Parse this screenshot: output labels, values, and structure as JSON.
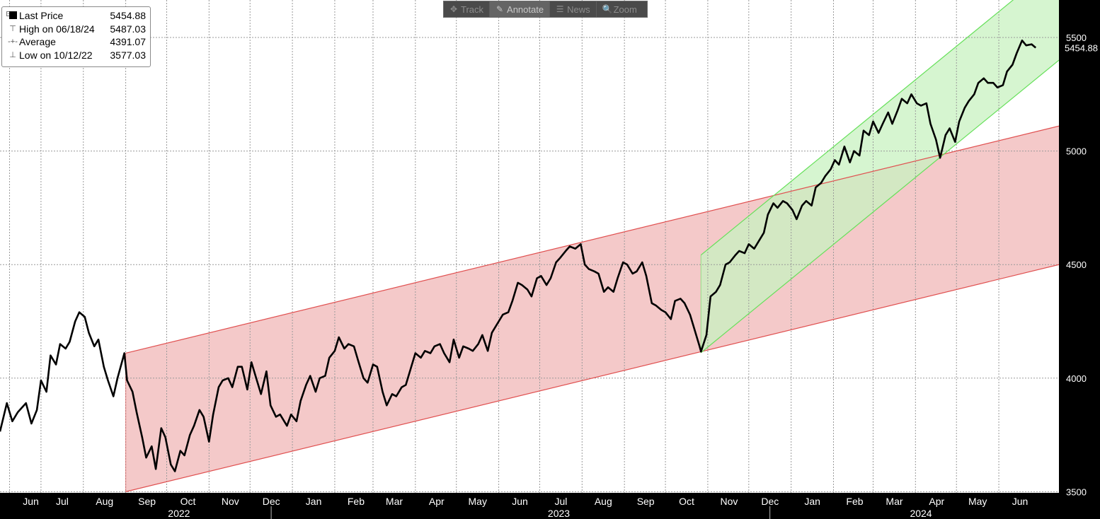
{
  "toolbar": {
    "buttons": [
      {
        "label": "Track",
        "icon": "crosshair-icon",
        "glyph": "✥"
      },
      {
        "label": "Annotate",
        "icon": "pencil-icon",
        "glyph": "✎"
      },
      {
        "label": "News",
        "icon": "news-icon",
        "glyph": "☰"
      },
      {
        "label": "Zoom",
        "icon": "zoom-icon",
        "glyph": "🔍"
      }
    ],
    "active": "Annotate"
  },
  "legend": {
    "rows": [
      {
        "label": "Last Price",
        "value": "5454.88"
      },
      {
        "label": "High on 06/18/24",
        "value": "5487.03"
      },
      {
        "label": "Average",
        "value": "4391.07"
      },
      {
        "label": "Low on 10/12/22",
        "value": "3577.03"
      }
    ]
  },
  "colors": {
    "price_line": "#000000",
    "red_channel_fill": "#f4c9c9",
    "red_channel_line": "#e05050",
    "green_channel_fill": "#c8f2c0",
    "green_channel_line": "#66e05a",
    "overlap_fill": "#d9d4a6",
    "grid": "#9a9a9a",
    "plot_bg": "#ffffff",
    "axis_bg": "#000000",
    "axis_text": "#ffffff"
  },
  "chart_data": {
    "type": "line",
    "title": "",
    "xlabel": "",
    "ylabel": "",
    "y_ticks": [
      3500,
      4000,
      4500,
      5000,
      5500
    ],
    "ylim": [
      3495,
      5665
    ],
    "xlim": [
      "2022-06-01",
      "2024-07-15"
    ],
    "last_value_label": "5454.88",
    "grid": true,
    "legend_position": "top-left",
    "month_ticks": [
      {
        "label": "Jun",
        "date": "2022-06-08"
      },
      {
        "label": "Jul",
        "date": "2022-07-01"
      },
      {
        "label": "Aug",
        "date": "2022-08-01"
      },
      {
        "label": "Sep",
        "date": "2022-09-01"
      },
      {
        "label": "Oct",
        "date": "2022-10-01"
      },
      {
        "label": "Nov",
        "date": "2022-11-01"
      },
      {
        "label": "Dec",
        "date": "2022-12-01"
      },
      {
        "label": "Jan",
        "date": "2023-01-01"
      },
      {
        "label": "Feb",
        "date": "2023-02-01"
      },
      {
        "label": "Mar",
        "date": "2023-03-01"
      },
      {
        "label": "Apr",
        "date": "2023-04-01"
      },
      {
        "label": "May",
        "date": "2023-05-01"
      },
      {
        "label": "Jun",
        "date": "2023-06-01"
      },
      {
        "label": "Jul",
        "date": "2023-07-01"
      },
      {
        "label": "Aug",
        "date": "2023-08-01"
      },
      {
        "label": "Sep",
        "date": "2023-09-01"
      },
      {
        "label": "Oct",
        "date": "2023-10-01"
      },
      {
        "label": "Nov",
        "date": "2023-11-01"
      },
      {
        "label": "Dec",
        "date": "2023-12-01"
      },
      {
        "label": "Jan",
        "date": "2024-01-01"
      },
      {
        "label": "Feb",
        "date": "2024-02-01"
      },
      {
        "label": "Mar",
        "date": "2024-03-01"
      },
      {
        "label": "Apr",
        "date": "2024-04-01"
      },
      {
        "label": "May",
        "date": "2024-05-01"
      },
      {
        "label": "Jun",
        "date": "2024-06-01"
      }
    ],
    "year_labels": [
      {
        "label": "2022",
        "date": "2022-10-10"
      },
      {
        "label": "2023",
        "date": "2023-07-15"
      },
      {
        "label": "2024",
        "date": "2024-04-05"
      }
    ],
    "year_separators": [
      "2023-01-01",
      "2024-01-01"
    ],
    "series": [
      {
        "points": [
          [
            "2022-06-01",
            3765
          ],
          [
            "2022-06-06",
            3890
          ],
          [
            "2022-06-10",
            3810
          ],
          [
            "2022-06-14",
            3850
          ],
          [
            "2022-06-20",
            3890
          ],
          [
            "2022-06-24",
            3800
          ],
          [
            "2022-06-28",
            3860
          ],
          [
            "2022-07-01",
            3990
          ],
          [
            "2022-07-05",
            3940
          ],
          [
            "2022-07-08",
            4100
          ],
          [
            "2022-07-12",
            4060
          ],
          [
            "2022-07-15",
            4150
          ],
          [
            "2022-07-19",
            4130
          ],
          [
            "2022-07-22",
            4160
          ],
          [
            "2022-07-26",
            4250
          ],
          [
            "2022-07-29",
            4290
          ],
          [
            "2022-08-02",
            4270
          ],
          [
            "2022-08-05",
            4200
          ],
          [
            "2022-08-09",
            4140
          ],
          [
            "2022-08-12",
            4170
          ],
          [
            "2022-08-16",
            4050
          ],
          [
            "2022-08-19",
            3990
          ],
          [
            "2022-08-23",
            3920
          ],
          [
            "2022-08-26",
            4000
          ],
          [
            "2022-08-31",
            4110
          ],
          [
            "2022-09-02",
            3990
          ],
          [
            "2022-09-06",
            3940
          ],
          [
            "2022-09-09",
            3850
          ],
          [
            "2022-09-13",
            3740
          ],
          [
            "2022-09-16",
            3650
          ],
          [
            "2022-09-20",
            3700
          ],
          [
            "2022-09-23",
            3600
          ],
          [
            "2022-09-27",
            3780
          ],
          [
            "2022-09-30",
            3740
          ],
          [
            "2022-10-04",
            3620
          ],
          [
            "2022-10-07",
            3590
          ],
          [
            "2022-10-11",
            3680
          ],
          [
            "2022-10-14",
            3660
          ],
          [
            "2022-10-18",
            3750
          ],
          [
            "2022-10-21",
            3790
          ],
          [
            "2022-10-25",
            3860
          ],
          [
            "2022-10-28",
            3830
          ],
          [
            "2022-11-01",
            3720
          ],
          [
            "2022-11-04",
            3840
          ],
          [
            "2022-11-08",
            3960
          ],
          [
            "2022-11-11",
            3990
          ],
          [
            "2022-11-15",
            4000
          ],
          [
            "2022-11-18",
            3960
          ],
          [
            "2022-11-22",
            4050
          ],
          [
            "2022-11-25",
            4050
          ],
          [
            "2022-11-29",
            3950
          ],
          [
            "2022-12-02",
            4070
          ],
          [
            "2022-12-06",
            3990
          ],
          [
            "2022-12-09",
            3930
          ],
          [
            "2022-12-13",
            4030
          ],
          [
            "2022-12-16",
            3880
          ],
          [
            "2022-12-20",
            3830
          ],
          [
            "2022-12-23",
            3840
          ],
          [
            "2022-12-28",
            3790
          ],
          [
            "2022-12-31",
            3840
          ],
          [
            "2023-01-04",
            3810
          ],
          [
            "2023-01-07",
            3900
          ],
          [
            "2023-01-11",
            3970
          ],
          [
            "2023-01-14",
            4010
          ],
          [
            "2023-01-18",
            3940
          ],
          [
            "2023-01-21",
            4000
          ],
          [
            "2023-01-25",
            4010
          ],
          [
            "2023-01-28",
            4090
          ],
          [
            "2023-02-01",
            4120
          ],
          [
            "2023-02-04",
            4180
          ],
          [
            "2023-02-08",
            4130
          ],
          [
            "2023-02-11",
            4150
          ],
          [
            "2023-02-15",
            4140
          ],
          [
            "2023-02-18",
            4080
          ],
          [
            "2023-02-22",
            4000
          ],
          [
            "2023-02-25",
            3980
          ],
          [
            "2023-03-01",
            4060
          ],
          [
            "2023-03-04",
            4050
          ],
          [
            "2023-03-08",
            3940
          ],
          [
            "2023-03-11",
            3880
          ],
          [
            "2023-03-15",
            3930
          ],
          [
            "2023-03-18",
            3920
          ],
          [
            "2023-03-22",
            3960
          ],
          [
            "2023-03-25",
            3970
          ],
          [
            "2023-03-29",
            4050
          ],
          [
            "2023-04-01",
            4110
          ],
          [
            "2023-04-05",
            4090
          ],
          [
            "2023-04-08",
            4120
          ],
          [
            "2023-04-12",
            4110
          ],
          [
            "2023-04-15",
            4140
          ],
          [
            "2023-04-19",
            4150
          ],
          [
            "2023-04-22",
            4110
          ],
          [
            "2023-04-26",
            4070
          ],
          [
            "2023-04-29",
            4170
          ],
          [
            "2023-05-03",
            4090
          ],
          [
            "2023-05-06",
            4140
          ],
          [
            "2023-05-10",
            4130
          ],
          [
            "2023-05-13",
            4120
          ],
          [
            "2023-05-17",
            4150
          ],
          [
            "2023-05-20",
            4190
          ],
          [
            "2023-05-24",
            4120
          ],
          [
            "2023-05-27",
            4200
          ],
          [
            "2023-06-01",
            4250
          ],
          [
            "2023-06-04",
            4280
          ],
          [
            "2023-06-08",
            4290
          ],
          [
            "2023-06-11",
            4340
          ],
          [
            "2023-06-15",
            4420
          ],
          [
            "2023-06-18",
            4410
          ],
          [
            "2023-06-22",
            4390
          ],
          [
            "2023-06-25",
            4360
          ],
          [
            "2023-06-29",
            4440
          ],
          [
            "2023-07-02",
            4450
          ],
          [
            "2023-07-06",
            4410
          ],
          [
            "2023-07-09",
            4440
          ],
          [
            "2023-07-13",
            4510
          ],
          [
            "2023-07-16",
            4530
          ],
          [
            "2023-07-20",
            4560
          ],
          [
            "2023-07-23",
            4580
          ],
          [
            "2023-07-27",
            4570
          ],
          [
            "2023-07-31",
            4590
          ],
          [
            "2023-08-03",
            4500
          ],
          [
            "2023-08-06",
            4480
          ],
          [
            "2023-08-10",
            4470
          ],
          [
            "2023-08-13",
            4460
          ],
          [
            "2023-08-17",
            4380
          ],
          [
            "2023-08-20",
            4400
          ],
          [
            "2023-08-24",
            4380
          ],
          [
            "2023-08-27",
            4440
          ],
          [
            "2023-08-31",
            4510
          ],
          [
            "2023-09-03",
            4500
          ],
          [
            "2023-09-07",
            4460
          ],
          [
            "2023-09-10",
            4470
          ],
          [
            "2023-09-14",
            4510
          ],
          [
            "2023-09-17",
            4450
          ],
          [
            "2023-09-21",
            4330
          ],
          [
            "2023-09-24",
            4320
          ],
          [
            "2023-09-28",
            4300
          ],
          [
            "2023-10-01",
            4290
          ],
          [
            "2023-10-05",
            4260
          ],
          [
            "2023-10-08",
            4340
          ],
          [
            "2023-10-12",
            4350
          ],
          [
            "2023-10-15",
            4330
          ],
          [
            "2023-10-19",
            4280
          ],
          [
            "2023-10-22",
            4220
          ],
          [
            "2023-10-26",
            4140
          ],
          [
            "2023-10-27",
            4117
          ],
          [
            "2023-10-31",
            4190
          ],
          [
            "2023-11-03",
            4360
          ],
          [
            "2023-11-07",
            4380
          ],
          [
            "2023-11-10",
            4410
          ],
          [
            "2023-11-14",
            4500
          ],
          [
            "2023-11-17",
            4510
          ],
          [
            "2023-11-21",
            4540
          ],
          [
            "2023-11-24",
            4560
          ],
          [
            "2023-11-28",
            4550
          ],
          [
            "2023-12-01",
            4590
          ],
          [
            "2023-12-05",
            4570
          ],
          [
            "2023-12-08",
            4600
          ],
          [
            "2023-12-12",
            4640
          ],
          [
            "2023-12-15",
            4720
          ],
          [
            "2023-12-19",
            4770
          ],
          [
            "2023-12-22",
            4750
          ],
          [
            "2023-12-26",
            4780
          ],
          [
            "2023-12-29",
            4770
          ],
          [
            "2024-01-02",
            4740
          ],
          [
            "2024-01-05",
            4700
          ],
          [
            "2024-01-09",
            4760
          ],
          [
            "2024-01-12",
            4780
          ],
          [
            "2024-01-16",
            4760
          ],
          [
            "2024-01-19",
            4840
          ],
          [
            "2024-01-23",
            4860
          ],
          [
            "2024-01-26",
            4890
          ],
          [
            "2024-01-30",
            4920
          ],
          [
            "2024-02-02",
            4960
          ],
          [
            "2024-02-05",
            4940
          ],
          [
            "2024-02-09",
            5020
          ],
          [
            "2024-02-13",
            4950
          ],
          [
            "2024-02-16",
            5000
          ],
          [
            "2024-02-20",
            4980
          ],
          [
            "2024-02-23",
            5090
          ],
          [
            "2024-02-27",
            5070
          ],
          [
            "2024-03-01",
            5130
          ],
          [
            "2024-03-05",
            5080
          ],
          [
            "2024-03-08",
            5120
          ],
          [
            "2024-03-12",
            5170
          ],
          [
            "2024-03-15",
            5120
          ],
          [
            "2024-03-19",
            5180
          ],
          [
            "2024-03-22",
            5230
          ],
          [
            "2024-03-26",
            5210
          ],
          [
            "2024-03-29",
            5250
          ],
          [
            "2024-04-02",
            5210
          ],
          [
            "2024-04-05",
            5200
          ],
          [
            "2024-04-09",
            5210
          ],
          [
            "2024-04-12",
            5120
          ],
          [
            "2024-04-16",
            5050
          ],
          [
            "2024-04-19",
            4970
          ],
          [
            "2024-04-23",
            5070
          ],
          [
            "2024-04-26",
            5100
          ],
          [
            "2024-04-30",
            5040
          ],
          [
            "2024-05-03",
            5130
          ],
          [
            "2024-05-07",
            5190
          ],
          [
            "2024-05-10",
            5220
          ],
          [
            "2024-05-14",
            5250
          ],
          [
            "2024-05-17",
            5300
          ],
          [
            "2024-05-21",
            5320
          ],
          [
            "2024-05-24",
            5300
          ],
          [
            "2024-05-28",
            5300
          ],
          [
            "2024-05-31",
            5280
          ],
          [
            "2024-06-04",
            5290
          ],
          [
            "2024-06-07",
            5350
          ],
          [
            "2024-06-11",
            5380
          ],
          [
            "2024-06-14",
            5430
          ],
          [
            "2024-06-18",
            5487
          ],
          [
            "2024-06-21",
            5465
          ],
          [
            "2024-06-25",
            5470
          ],
          [
            "2024-06-28",
            5455
          ]
        ]
      }
    ],
    "channels": [
      {
        "color": "red",
        "start": [
          "2022-09-01",
          3500
        ],
        "end": [
          "2024-07-15",
          4500
        ],
        "width": 610
      },
      {
        "color": "green",
        "start": [
          "2023-10-27",
          4112
        ],
        "end": [
          "2024-07-15",
          5400
        ],
        "width": 430
      }
    ]
  }
}
